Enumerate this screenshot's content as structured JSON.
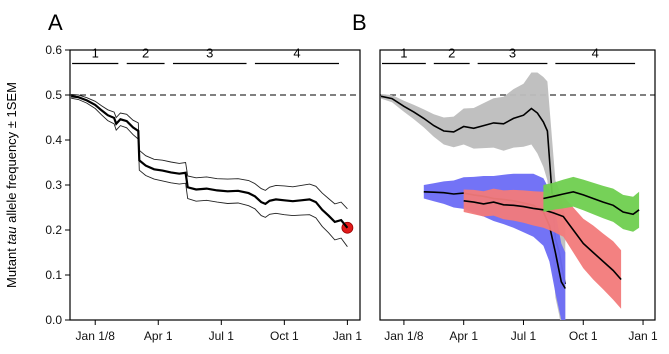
{
  "figure": {
    "ylabel_pre": "Mutant ",
    "ylabel_italic": "tau",
    "ylabel_post": " allele frequency ± 1SEM"
  },
  "chart_data": [
    {
      "panel": "A",
      "type": "line",
      "x_tick_labels": [
        "Jan 1/8",
        "Apr 1",
        "Jul 1",
        "Oct 1",
        "Jan 1"
      ],
      "x_ticks_month": [
        0,
        3,
        6,
        9,
        12
      ],
      "y_ticks": [
        "0.0",
        "0.1",
        "0.2",
        "0.3",
        "0.4",
        "0.5",
        "0.6"
      ],
      "xlim_month": [
        -1.2,
        12.6
      ],
      "ylim": [
        0,
        0.6
      ],
      "reference_line": {
        "y": 0.5,
        "style": "dashed"
      },
      "periods": [
        {
          "label": "1",
          "start": -1.1,
          "end": 1.1
        },
        {
          "label": "2",
          "start": 1.5,
          "end": 3.3
        },
        {
          "label": "3",
          "start": 3.7,
          "end": 7.2
        },
        {
          "label": "4",
          "start": 7.6,
          "end": 11.6
        }
      ],
      "series": [
        {
          "color": "#000000",
          "style": "mean-with-sem-lines",
          "points": [
            [
              -1.15,
              0.497,
              0.004
            ],
            [
              -0.8,
              0.495,
              0.005
            ],
            [
              -0.4,
              0.488,
              0.006
            ],
            [
              0.0,
              0.478,
              0.008
            ],
            [
              0.3,
              0.466,
              0.01
            ],
            [
              0.6,
              0.455,
              0.012
            ],
            [
              0.9,
              0.449,
              0.013
            ],
            [
              1.0,
              0.436,
              0.014
            ],
            [
              1.2,
              0.446,
              0.014
            ],
            [
              1.5,
              0.442,
              0.015
            ],
            [
              1.8,
              0.428,
              0.016
            ],
            [
              2.05,
              0.42,
              0.018
            ],
            [
              2.1,
              0.355,
              0.022
            ],
            [
              2.4,
              0.343,
              0.022
            ],
            [
              2.8,
              0.335,
              0.022
            ],
            [
              3.2,
              0.332,
              0.023
            ],
            [
              3.6,
              0.328,
              0.023
            ],
            [
              4.0,
              0.325,
              0.023
            ],
            [
              4.3,
              0.327,
              0.023
            ],
            [
              4.4,
              0.295,
              0.025
            ],
            [
              4.8,
              0.29,
              0.026
            ],
            [
              5.3,
              0.292,
              0.026
            ],
            [
              5.8,
              0.288,
              0.026
            ],
            [
              6.3,
              0.286,
              0.027
            ],
            [
              6.8,
              0.287,
              0.027
            ],
            [
              7.3,
              0.282,
              0.028
            ],
            [
              7.6,
              0.275,
              0.028
            ],
            [
              7.9,
              0.262,
              0.03
            ],
            [
              8.1,
              0.258,
              0.03
            ],
            [
              8.3,
              0.265,
              0.03
            ],
            [
              8.6,
              0.268,
              0.031
            ],
            [
              9.0,
              0.266,
              0.032
            ],
            [
              9.4,
              0.264,
              0.032
            ],
            [
              9.8,
              0.266,
              0.033
            ],
            [
              10.2,
              0.268,
              0.034
            ],
            [
              10.5,
              0.262,
              0.035
            ],
            [
              10.8,
              0.245,
              0.037
            ],
            [
              11.1,
              0.232,
              0.038
            ],
            [
              11.4,
              0.218,
              0.04
            ],
            [
              11.7,
              0.222,
              0.04
            ],
            [
              12.0,
              0.205,
              0.042
            ]
          ]
        }
      ],
      "marker": {
        "x": 12.0,
        "y": 0.205,
        "color": "#e11b1b"
      }
    },
    {
      "panel": "B",
      "type": "area",
      "x_tick_labels": [
        "Jan 1/8",
        "Apr 1",
        "Jul 1",
        "Oct 1",
        "Jan 1"
      ],
      "x_ticks_month": [
        0,
        3,
        6,
        9,
        12
      ],
      "y_ticks": [],
      "xlim_month": [
        -1.2,
        12.6
      ],
      "ylim": [
        0,
        0.6
      ],
      "reference_line": {
        "y": 0.5,
        "style": "dashed"
      },
      "periods": [
        {
          "label": "1",
          "start": -1.1,
          "end": 1.1
        },
        {
          "label": "2",
          "start": 1.5,
          "end": 3.3
        },
        {
          "label": "3",
          "start": 3.7,
          "end": 7.2
        },
        {
          "label": "4",
          "start": 7.6,
          "end": 11.6
        }
      ],
      "series": [
        {
          "color": "#bdbdbd",
          "style": "band-with-line",
          "points": [
            [
              -1.15,
              0.497,
              0.005
            ],
            [
              -0.6,
              0.492,
              0.008
            ],
            [
              0.0,
              0.475,
              0.012
            ],
            [
              0.5,
              0.462,
              0.016
            ],
            [
              1.0,
              0.448,
              0.02
            ],
            [
              1.5,
              0.432,
              0.025
            ],
            [
              2.0,
              0.42,
              0.03
            ],
            [
              2.5,
              0.418,
              0.034
            ],
            [
              3.0,
              0.43,
              0.04
            ],
            [
              3.5,
              0.426,
              0.045
            ],
            [
              4.0,
              0.432,
              0.05
            ],
            [
              4.5,
              0.438,
              0.055
            ],
            [
              5.0,
              0.436,
              0.06
            ],
            [
              5.5,
              0.448,
              0.065
            ],
            [
              6.0,
              0.455,
              0.07
            ],
            [
              6.4,
              0.47,
              0.08
            ],
            [
              6.7,
              0.46,
              0.09
            ],
            [
              7.0,
              0.44,
              0.1
            ],
            [
              7.2,
              0.42,
              0.11
            ],
            [
              7.4,
              0.3,
              0.12
            ],
            [
              7.6,
              0.18,
              0.13
            ],
            [
              7.8,
              0.15,
              0.14
            ],
            [
              8.0,
              0.1,
              0.15
            ],
            [
              8.1,
              0.08,
              0.15
            ]
          ]
        },
        {
          "color": "#6b6bf5",
          "style": "band-with-line",
          "points": [
            [
              1.0,
              0.285,
              0.015
            ],
            [
              1.5,
              0.284,
              0.02
            ],
            [
              2.0,
              0.283,
              0.025
            ],
            [
              2.5,
              0.28,
              0.03
            ],
            [
              3.0,
              0.282,
              0.035
            ],
            [
              3.5,
              0.278,
              0.04
            ],
            [
              4.0,
              0.275,
              0.045
            ],
            [
              4.5,
              0.27,
              0.05
            ],
            [
              5.0,
              0.268,
              0.055
            ],
            [
              5.5,
              0.265,
              0.06
            ],
            [
              6.0,
              0.26,
              0.065
            ],
            [
              6.5,
              0.255,
              0.07
            ],
            [
              7.0,
              0.24,
              0.075
            ],
            [
              7.3,
              0.21,
              0.08
            ],
            [
              7.6,
              0.15,
              0.09
            ],
            [
              7.9,
              0.085,
              0.085
            ],
            [
              8.1,
              0.07,
              0.08
            ]
          ]
        },
        {
          "color": "#f27a7a",
          "style": "band-with-line",
          "points": [
            [
              3.0,
              0.265,
              0.025
            ],
            [
              3.5,
              0.262,
              0.027
            ],
            [
              4.0,
              0.258,
              0.028
            ],
            [
              4.5,
              0.262,
              0.03
            ],
            [
              5.0,
              0.256,
              0.032
            ],
            [
              5.5,
              0.255,
              0.034
            ],
            [
              6.0,
              0.252,
              0.036
            ],
            [
              6.5,
              0.248,
              0.038
            ],
            [
              7.0,
              0.245,
              0.04
            ],
            [
              7.5,
              0.238,
              0.042
            ],
            [
              8.0,
              0.23,
              0.045
            ],
            [
              8.5,
              0.2,
              0.05
            ],
            [
              9.0,
              0.17,
              0.055
            ],
            [
              9.5,
              0.15,
              0.06
            ],
            [
              10.0,
              0.13,
              0.062
            ],
            [
              10.5,
              0.11,
              0.065
            ],
            [
              10.9,
              0.09,
              0.065
            ]
          ]
        },
        {
          "color": "#6fcf4f",
          "style": "band-with-line",
          "points": [
            [
              7.0,
              0.27,
              0.03
            ],
            [
              7.5,
              0.275,
              0.03
            ],
            [
              8.0,
              0.28,
              0.032
            ],
            [
              8.5,
              0.285,
              0.033
            ],
            [
              9.0,
              0.278,
              0.034
            ],
            [
              9.5,
              0.27,
              0.035
            ],
            [
              10.0,
              0.262,
              0.036
            ],
            [
              10.5,
              0.255,
              0.037
            ],
            [
              11.0,
              0.24,
              0.038
            ],
            [
              11.5,
              0.235,
              0.039
            ],
            [
              11.8,
              0.245,
              0.04
            ]
          ]
        }
      ]
    }
  ]
}
